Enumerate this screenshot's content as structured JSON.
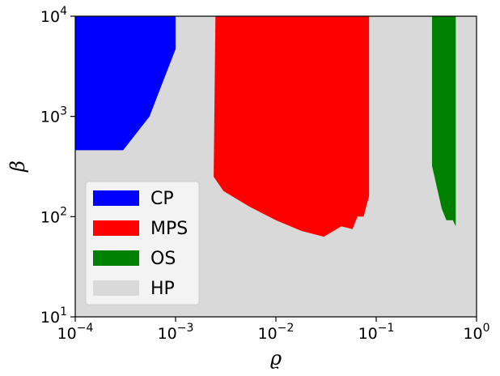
{
  "chart_data": {
    "type": "area",
    "title": "",
    "xlabel": "ϱ",
    "ylabel": "β",
    "xscale": "log",
    "yscale": "log",
    "xlim": [
      0.0001,
      1
    ],
    "ylim": [
      10,
      10000
    ],
    "grid": false,
    "background_color": "#d9d9d9",
    "x_ticks": [
      {
        "base": "10",
        "exp": "−4"
      },
      {
        "base": "10",
        "exp": "−3"
      },
      {
        "base": "10",
        "exp": "−2"
      },
      {
        "base": "10",
        "exp": "−1"
      },
      {
        "base": "10",
        "exp": "0"
      }
    ],
    "y_ticks": [
      {
        "base": "10",
        "exp": "1"
      },
      {
        "base": "10",
        "exp": "2"
      },
      {
        "base": "10",
        "exp": "3"
      },
      {
        "base": "10",
        "exp": "4"
      }
    ],
    "legend": {
      "location": "lower-left",
      "entries": [
        {
          "label": "CP",
          "color": "#0000ff"
        },
        {
          "label": "MPS",
          "color": "#ff0000"
        },
        {
          "label": "OS",
          "color": "#008000"
        },
        {
          "label": "HP",
          "color": "#d9d9d9"
        }
      ]
    },
    "series": [
      {
        "name": "CP",
        "color": "#0000ff",
        "polygon": [
          [
            0.0001,
            10000
          ],
          [
            0.001,
            10000
          ],
          [
            0.001,
            4700
          ],
          [
            0.00055,
            1000
          ],
          [
            0.0003,
            460
          ],
          [
            0.0001,
            460
          ]
        ]
      },
      {
        "name": "MPS",
        "color": "#ff0000",
        "polygon": [
          [
            0.0025,
            10000
          ],
          [
            0.085,
            10000
          ],
          [
            0.085,
            160
          ],
          [
            0.08,
            130
          ],
          [
            0.075,
            100
          ],
          [
            0.065,
            100
          ],
          [
            0.058,
            75
          ],
          [
            0.05,
            78
          ],
          [
            0.045,
            80
          ],
          [
            0.03,
            63
          ],
          [
            0.018,
            72
          ],
          [
            0.01,
            92
          ],
          [
            0.0055,
            125
          ],
          [
            0.003,
            180
          ],
          [
            0.0024,
            250
          ],
          [
            0.0025,
            10000
          ]
        ]
      },
      {
        "name": "OS",
        "color": "#008000",
        "polygon": [
          [
            0.36,
            10000
          ],
          [
            0.62,
            10000
          ],
          [
            0.62,
            80
          ],
          [
            0.58,
            92
          ],
          [
            0.5,
            92
          ],
          [
            0.45,
            120
          ],
          [
            0.36,
            320
          ],
          [
            0.36,
            10000
          ]
        ]
      }
    ]
  }
}
